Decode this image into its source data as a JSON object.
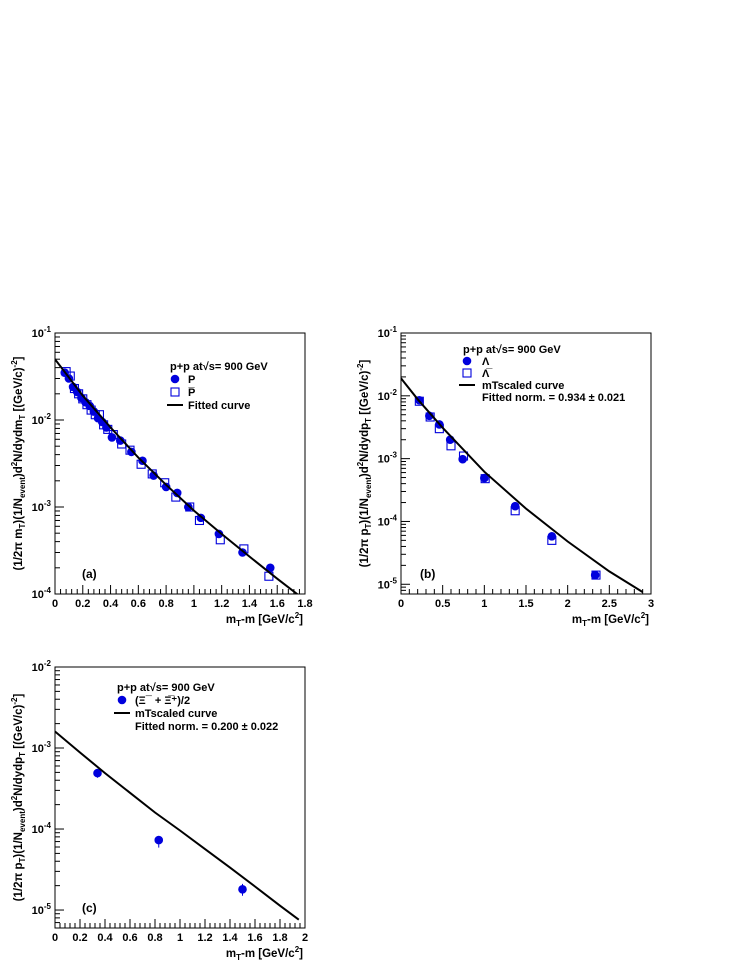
{
  "chart_data": [
    {
      "type": "scatter",
      "panel_label": "(a)",
      "xlim": [
        0,
        1.8
      ],
      "ylim": [
        0.0001,
        0.1
      ],
      "y_scale": "log",
      "xticks": [
        "0",
        "0.2",
        "0.4",
        "0.6",
        "0.8",
        "1",
        "1.2",
        "1.4",
        "1.6",
        "1.8"
      ],
      "xtick_values": [
        0,
        0.2,
        0.4,
        0.6,
        0.8,
        1.0,
        1.2,
        1.4,
        1.6,
        1.8
      ],
      "yticks": [
        "10^-4",
        "10^-3",
        "10^-2",
        "10^-1"
      ],
      "ytick_values": [
        0.0001,
        0.001,
        0.01,
        0.1
      ],
      "xlabel": "mT-m [GeV/c2]",
      "ylabel": "(1/2π mT)(1/Nevent)d2N/dydmT [(GeV/c)-2]",
      "legend": {
        "header": "p+p at√s= 900 GeV",
        "entries": [
          {
            "label": "P",
            "marker": "filled-circle"
          },
          {
            "label": "P̅",
            "marker": "open-square"
          },
          {
            "label": "Fitted curve",
            "marker": "line"
          }
        ]
      },
      "series": [
        {
          "name": "P",
          "marker": "filled-circle",
          "x": [
            0.07,
            0.1,
            0.13,
            0.16,
            0.19,
            0.22,
            0.25,
            0.28,
            0.31,
            0.34,
            0.37,
            0.41,
            0.47,
            0.55,
            0.63,
            0.71,
            0.8,
            0.88,
            0.96,
            1.05,
            1.18,
            1.35,
            1.55
          ],
          "y": [
            0.035,
            0.03,
            0.024,
            0.021,
            0.018,
            0.016,
            0.0145,
            0.0125,
            0.0105,
            0.0095,
            0.0082,
            0.0063,
            0.0058,
            0.0043,
            0.0034,
            0.0023,
            0.0017,
            0.00145,
            0.001,
            0.00075,
            0.00049,
            0.0003,
            0.0002
          ]
        },
        {
          "name": "P̅",
          "marker": "open-square",
          "x": [
            0.08,
            0.11,
            0.14,
            0.17,
            0.2,
            0.23,
            0.26,
            0.29,
            0.32,
            0.35,
            0.38,
            0.42,
            0.48,
            0.54,
            0.62,
            0.7,
            0.79,
            0.87,
            0.97,
            1.04,
            1.19,
            1.36,
            1.54
          ],
          "y": [
            0.036,
            0.032,
            0.023,
            0.02,
            0.0175,
            0.015,
            0.013,
            0.0115,
            0.0115,
            0.0088,
            0.0078,
            0.0068,
            0.0053,
            0.0045,
            0.0031,
            0.0024,
            0.0019,
            0.0013,
            0.001,
            0.0007,
            0.00042,
            0.00033,
            0.00016
          ]
        },
        {
          "name": "Fitted curve",
          "marker": "line",
          "x": [
            0.0,
            0.2,
            0.4,
            0.6,
            0.8,
            1.0,
            1.2,
            1.4,
            1.6,
            1.8
          ],
          "y": [
            0.05,
            0.019,
            0.0082,
            0.0037,
            0.0018,
            0.00091,
            0.00049,
            0.00027,
            0.00015,
            8.5e-05
          ]
        }
      ]
    },
    {
      "type": "scatter",
      "panel_label": "(b)",
      "xlim": [
        0,
        3
      ],
      "ylim": [
        7e-06,
        0.1
      ],
      "y_scale": "log",
      "xticks": [
        "0",
        "0.5",
        "1",
        "1.5",
        "2",
        "2.5",
        "3"
      ],
      "xtick_values": [
        0,
        0.5,
        1.0,
        1.5,
        2.0,
        2.5,
        3.0
      ],
      "yticks": [
        "10^-5",
        "10^-4",
        "10^-3",
        "10^-2",
        "10^-1"
      ],
      "ytick_values": [
        1e-05,
        0.0001,
        0.001,
        0.01,
        0.1
      ],
      "xlabel": "mT-m [GeV/c2]",
      "ylabel": "(1/2π pT)(1/Nevent)d2N/dydpT [(GeV/c)-2]",
      "legend": {
        "header": "p+p at√s= 900 GeV",
        "entries": [
          {
            "label": "Λ",
            "marker": "filled-circle"
          },
          {
            "label": "Λ̅",
            "marker": "open-square"
          },
          {
            "label": "mTscaled curve",
            "marker": "line"
          },
          {
            "label": "Fitted norm.  = 0.934 ± 0.021",
            "marker": "none"
          }
        ]
      },
      "series": [
        {
          "name": "Λ",
          "marker": "filled-circle",
          "x": [
            0.22,
            0.34,
            0.46,
            0.59,
            0.74,
            1.0,
            1.37,
            1.81,
            2.33
          ],
          "y": [
            0.0085,
            0.0048,
            0.0035,
            0.002,
            0.00098,
            0.00049,
            0.000175,
            5.8e-05,
            1.4e-05
          ]
        },
        {
          "name": "Λ̅",
          "marker": "open-square",
          "x": [
            0.22,
            0.35,
            0.46,
            0.6,
            0.75,
            1.01,
            1.37,
            1.81,
            2.34
          ],
          "y": [
            0.0082,
            0.0046,
            0.003,
            0.0016,
            0.0011,
            0.00048,
            0.000148,
            5e-05,
            1.4e-05
          ]
        },
        {
          "name": "mTscaled curve",
          "marker": "line",
          "x": [
            0.0,
            0.2,
            0.5,
            1.0,
            1.5,
            2.0,
            2.5,
            2.9
          ],
          "y": [
            0.019,
            0.0088,
            0.0031,
            0.00062,
            0.00016,
            4.8e-05,
            1.6e-05,
            7.5e-06
          ]
        }
      ]
    },
    {
      "type": "scatter",
      "panel_label": "(c)",
      "xlim": [
        0,
        2
      ],
      "ylim": [
        6e-06,
        0.01
      ],
      "y_scale": "log",
      "xticks": [
        "0",
        "0.2",
        "0.4",
        "0.6",
        "0.8",
        "1",
        "1.2",
        "1.4",
        "1.6",
        "1.8",
        "2"
      ],
      "xtick_values": [
        0,
        0.2,
        0.4,
        0.6,
        0.8,
        1.0,
        1.2,
        1.4,
        1.6,
        1.8,
        2.0
      ],
      "yticks": [
        "10^-5",
        "10^-4",
        "10^-3",
        "10^-2"
      ],
      "ytick_values": [
        1e-05,
        0.0001,
        0.001,
        0.01
      ],
      "xlabel": "mT-m [GeV/c2]",
      "ylabel": "(1/2π pT)(1/Nevent)d2N/dydpT [(GeV/c)-2]",
      "legend": {
        "header": "p+p at√s= 900 GeV",
        "entries": [
          {
            "label": "(Ξ¯ + Ξ̅⁺)/2",
            "marker": "filled-circle"
          },
          {
            "label": "mTscaled curve",
            "marker": "line"
          },
          {
            "label": "Fitted norm.  = 0.200 ± 0.022",
            "marker": "none"
          }
        ]
      },
      "series": [
        {
          "name": "(Ξ¯ + Ξ̅⁺)/2",
          "marker": "filled-circle",
          "x": [
            0.34,
            0.83,
            1.5
          ],
          "y": [
            0.00049,
            7.3e-05,
            1.8e-05
          ],
          "err_low": [
            0.00043,
            5.9e-05,
            1.5e-05
          ],
          "err_high": [
            0.00055,
            7.9e-05,
            2.1e-05
          ]
        },
        {
          "name": "mTscaled curve",
          "marker": "line",
          "x": [
            0.0,
            0.2,
            0.4,
            0.6,
            0.8,
            1.0,
            1.2,
            1.4,
            1.6,
            1.8,
            1.95
          ],
          "y": [
            0.0016,
            0.00088,
            0.00049,
            0.00028,
            0.00016,
            9.58e-05,
            5.65e-05,
            3.34e-05,
            1.95e-05,
            1.13e-05,
            7.6e-06
          ]
        }
      ]
    }
  ]
}
